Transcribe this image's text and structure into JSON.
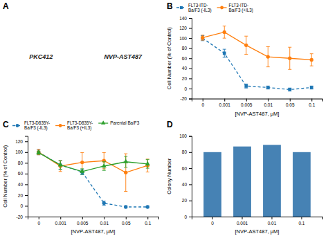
{
  "chart_data": [
    {
      "type": "diagram",
      "title": "A",
      "annotations": [
        "PKC412",
        "NVP-AST487"
      ]
    },
    {
      "type": "line",
      "title": "B",
      "categories": [
        "0",
        "0.001",
        "0.005",
        "0.01",
        "0.05",
        "0.1"
      ],
      "series": [
        {
          "name": "FLT3-ITD-\nBa/F3 (-IL3)",
          "marker": "square",
          "line_style": "dashed",
          "values": [
            100,
            70,
            5,
            2,
            -2,
            2
          ],
          "errors": [
            5,
            8,
            4,
            3,
            3,
            3
          ]
        },
        {
          "name": "FLT3-ITD-\nBa/F3 (+IL3)",
          "marker": "circle",
          "line_style": "solid",
          "values": [
            101,
            112,
            86,
            63,
            60,
            57
          ],
          "errors": [
            5,
            12,
            18,
            20,
            22,
            12
          ]
        }
      ],
      "xlabel": "[NVP-AST487, μM]",
      "ylabel": "Cell Number (% of Control)",
      "ylim": [
        -20,
        140
      ],
      "yticks": [
        -20,
        0,
        20,
        40,
        60,
        80,
        100,
        120,
        140
      ],
      "legend": "top"
    },
    {
      "type": "line",
      "title": "C",
      "categories": [
        "0",
        "0.001",
        "0.005",
        "0.01",
        "0.05",
        "0.1"
      ],
      "series": [
        {
          "name": "FLT3-D835Y-\nBa/F3 (-IL3)",
          "marker": "circle",
          "line_style": "dashed",
          "values": [
            100,
            76,
            63,
            5,
            -2,
            -2
          ],
          "errors": [
            5,
            8,
            5,
            4,
            2,
            2
          ]
        },
        {
          "name": "FLT3-D835Y-\nBa/F3 (+IL3)",
          "marker": "circle",
          "line_style": "solid",
          "values": [
            100,
            74,
            81,
            84,
            62,
            75
          ],
          "errors": [
            5,
            10,
            18,
            15,
            35,
            12
          ]
        },
        {
          "name": "Parental Ba/F3",
          "marker": "triangle",
          "line_style": "solid",
          "values": [
            99,
            76,
            64,
            74,
            82,
            78
          ],
          "errors": [
            3,
            8,
            5,
            8,
            10,
            8
          ]
        }
      ],
      "xlabel": "[NVP-AST487, μM]",
      "ylabel": "Cell Number (% of Control)",
      "ylim": [
        -20,
        130
      ],
      "yticks": [
        -20,
        0,
        20,
        40,
        60,
        80,
        100,
        120
      ],
      "legend": "top"
    },
    {
      "type": "bar",
      "title": "D",
      "categories": [
        "0",
        "0.001",
        "0.01",
        "0.1"
      ],
      "values": [
        80,
        87,
        89,
        80
      ],
      "xlabel": "[NVP-AST487, μM]",
      "ylabel": "Colony Number",
      "ylim": [
        0,
        100
      ],
      "yticks": [
        0,
        20,
        40,
        60,
        80,
        100
      ]
    }
  ]
}
